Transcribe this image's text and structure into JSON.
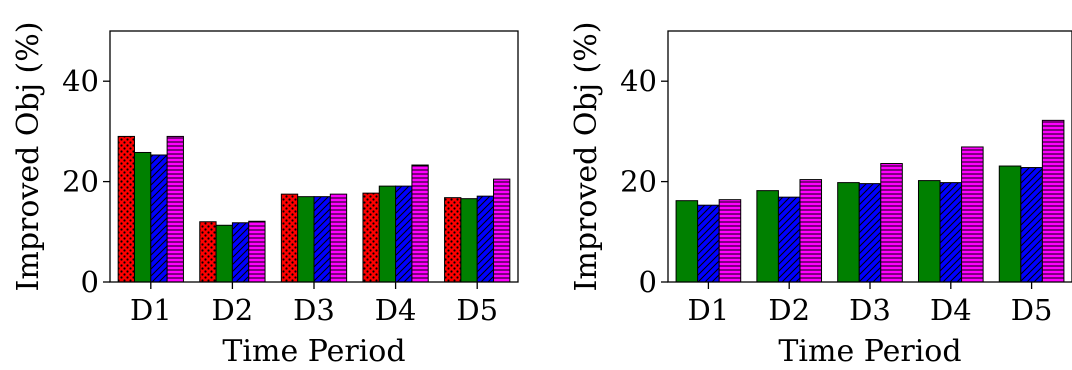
{
  "patterns": {
    "red": {
      "color": "#ff0000",
      "hatch": "dots"
    },
    "green": {
      "color": "#008000",
      "hatch": "none"
    },
    "blue": {
      "color": "#0000ff",
      "hatch": "diagonal"
    },
    "magenta": {
      "color": "#ff00ff",
      "hatch": "horizontal"
    }
  },
  "chart_data": [
    {
      "type": "bar",
      "categories": [
        "D1",
        "D2",
        "D3",
        "D4",
        "D5"
      ],
      "series": [
        {
          "style": "red",
          "values": [
            29.0,
            12.0,
            17.5,
            17.7,
            16.8
          ]
        },
        {
          "style": "green",
          "values": [
            25.8,
            11.3,
            17.0,
            19.1,
            16.6
          ]
        },
        {
          "style": "blue",
          "values": [
            25.3,
            11.8,
            17.0,
            19.1,
            17.1
          ]
        },
        {
          "style": "magenta",
          "values": [
            29.0,
            12.1,
            17.5,
            23.3,
            20.5
          ]
        }
      ],
      "xlabel": "Time Period",
      "ylabel": "Improved Obj (%)",
      "ylim": [
        0,
        50
      ],
      "yticks": [
        0,
        20,
        40
      ]
    },
    {
      "type": "bar",
      "categories": [
        "D1",
        "D2",
        "D3",
        "D4",
        "D5"
      ],
      "series": [
        {
          "style": "green",
          "values": [
            16.2,
            18.2,
            19.8,
            20.2,
            23.1
          ]
        },
        {
          "style": "blue",
          "values": [
            15.3,
            16.9,
            19.6,
            19.8,
            22.8
          ]
        },
        {
          "style": "magenta",
          "values": [
            16.4,
            20.4,
            23.6,
            26.9,
            32.2
          ]
        }
      ],
      "xlabel": "Time Period",
      "ylabel": "Improved Obj (%)",
      "ylim": [
        0,
        50
      ],
      "yticks": [
        0,
        20,
        40
      ]
    }
  ]
}
